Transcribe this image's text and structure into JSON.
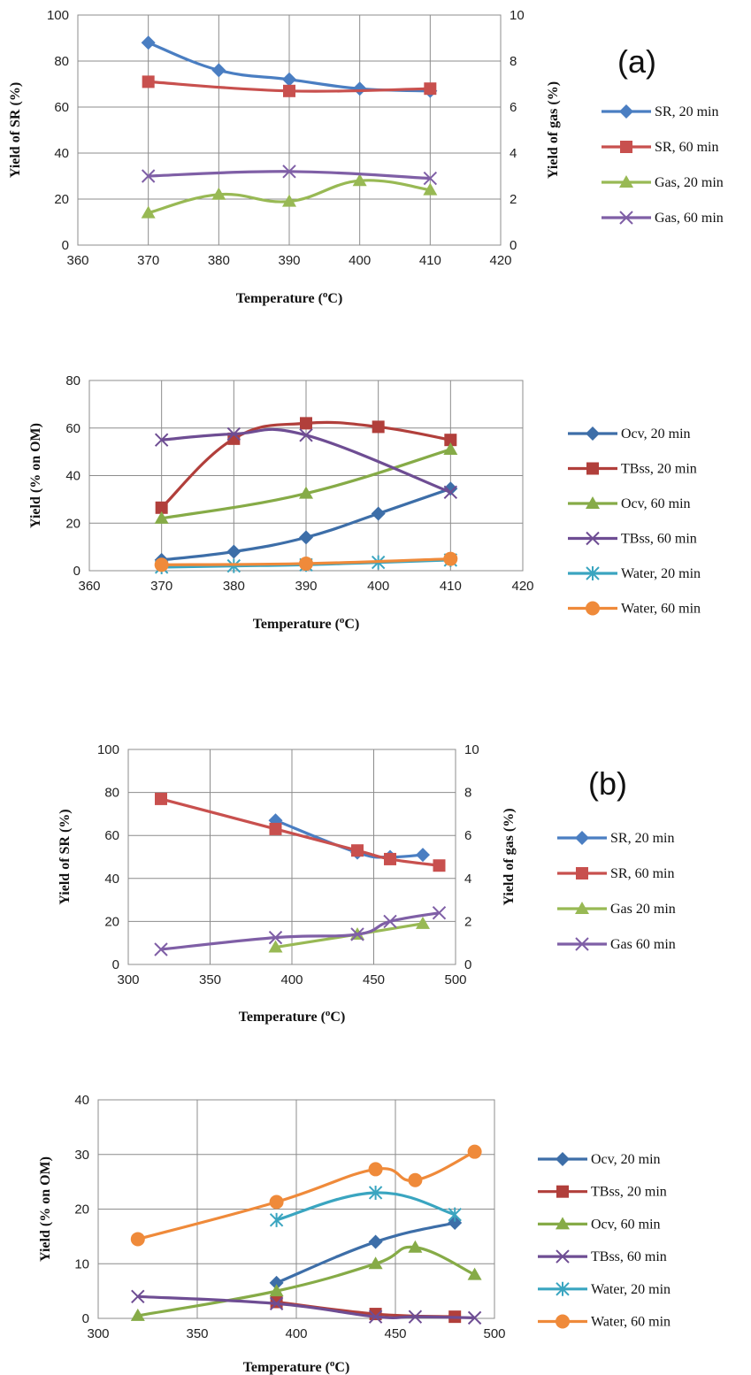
{
  "colors": {
    "sr20": "#4a7ec2",
    "sr60": "#c8504e",
    "gas20": "#98b954",
    "gas60": "#7f5fa6",
    "ocv20": "#3d6ea8",
    "tbss20": "#b13f3b",
    "ocv60": "#86ab47",
    "tbss60": "#6e4d93",
    "water20": "#3aa5c0",
    "water60": "#ef8a3a",
    "grid": "#8c8c8c"
  },
  "chart_data": [
    {
      "id": "chart1",
      "type": "line",
      "panel_label": "(a)",
      "xlabel": "Temperature (oC)",
      "ylabel": "Yield of SR (%)",
      "y2label": "Yield of gas (%)",
      "xlim": [
        360,
        420
      ],
      "xticks": [
        360,
        370,
        380,
        390,
        400,
        410,
        420
      ],
      "ylim": [
        0,
        100
      ],
      "yticks": [
        0,
        20,
        40,
        60,
        80,
        100
      ],
      "y2lim": [
        0,
        10
      ],
      "y2ticks": [
        0,
        2,
        4,
        6,
        8,
        10
      ],
      "grid": true,
      "legend_position": "right",
      "series": [
        {
          "name": "SR, 20 min",
          "axis": "left",
          "marker": "diamond",
          "color": "sr20",
          "x": [
            370,
            380,
            390,
            400,
            410
          ],
          "y": [
            88,
            76,
            72,
            68,
            67
          ]
        },
        {
          "name": "SR, 60 min",
          "axis": "left",
          "marker": "square",
          "color": "sr60",
          "x": [
            370,
            390,
            410
          ],
          "y": [
            71,
            67,
            68
          ]
        },
        {
          "name": "Gas, 20 min",
          "axis": "right",
          "marker": "triangle",
          "color": "gas20",
          "x": [
            370,
            380,
            390,
            400,
            410
          ],
          "y": [
            1.4,
            2.2,
            1.9,
            2.8,
            2.4
          ]
        },
        {
          "name": "Gas, 60 min",
          "axis": "right",
          "marker": "x",
          "color": "gas60",
          "x": [
            370,
            390,
            410
          ],
          "y": [
            3.0,
            3.2,
            2.9
          ]
        }
      ]
    },
    {
      "id": "chart2",
      "type": "line",
      "xlabel": "Temperature (oC)",
      "ylabel": "Yield (% on OM)",
      "xlim": [
        360,
        420
      ],
      "xticks": [
        360,
        370,
        380,
        390,
        400,
        410,
        420
      ],
      "ylim": [
        0,
        80
      ],
      "yticks": [
        0,
        20,
        40,
        60,
        80
      ],
      "grid": true,
      "legend_position": "right",
      "series": [
        {
          "name": "Ocv, 20 min",
          "marker": "diamond",
          "color": "ocv20",
          "x": [
            370,
            380,
            390,
            400,
            410
          ],
          "y": [
            4.5,
            8,
            14,
            24,
            34.5
          ]
        },
        {
          "name": "TBss, 20 min",
          "marker": "square",
          "color": "tbss20",
          "x": [
            370,
            380,
            390,
            400,
            410
          ],
          "y": [
            26.5,
            55.5,
            62,
            60.5,
            55
          ]
        },
        {
          "name": "Ocv, 60 min",
          "marker": "triangle",
          "color": "ocv60",
          "x": [
            370,
            390,
            410
          ],
          "y": [
            22,
            32.5,
            51
          ]
        },
        {
          "name": "TBss, 60 min",
          "marker": "x",
          "color": "tbss60",
          "x": [
            370,
            380,
            390,
            410
          ],
          "y": [
            55,
            57.5,
            57,
            33
          ]
        },
        {
          "name": "Water, 20 min",
          "marker": "star",
          "color": "water20",
          "x": [
            370,
            380,
            390,
            400,
            410
          ],
          "y": [
            1.5,
            2,
            2.5,
            3.5,
            4.5
          ]
        },
        {
          "name": "Water, 60 min",
          "marker": "circle",
          "color": "water60",
          "x": [
            370,
            390,
            410
          ],
          "y": [
            2.5,
            3,
            5
          ]
        }
      ]
    },
    {
      "id": "chart3",
      "type": "line",
      "panel_label": "(b)",
      "xlabel": "Temperature (oC)",
      "ylabel": "Yield of SR (%)",
      "y2label": "Yield of gas (%)",
      "xlim": [
        300,
        500
      ],
      "xticks": [
        300,
        350,
        400,
        450,
        500
      ],
      "ylim": [
        0,
        100
      ],
      "yticks": [
        0,
        20,
        40,
        60,
        80,
        100
      ],
      "y2lim": [
        0,
        10
      ],
      "y2ticks": [
        0,
        2,
        4,
        6,
        8,
        10
      ],
      "grid": true,
      "legend_position": "right",
      "series": [
        {
          "name": "SR, 20 min",
          "axis": "left",
          "marker": "diamond",
          "color": "sr20",
          "x": [
            390,
            440,
            460,
            480
          ],
          "y": [
            67,
            52,
            50,
            51
          ]
        },
        {
          "name": "SR, 60 min",
          "axis": "left",
          "marker": "square",
          "color": "sr60",
          "x": [
            320,
            390,
            440,
            460,
            490
          ],
          "y": [
            77,
            63,
            53,
            49,
            46
          ]
        },
        {
          "name": "Gas 20 min",
          "axis": "right",
          "marker": "triangle",
          "color": "gas20",
          "x": [
            390,
            440,
            480
          ],
          "y": [
            0.8,
            1.4,
            1.9
          ]
        },
        {
          "name": "Gas 60 min",
          "axis": "right",
          "marker": "x",
          "color": "gas60",
          "x": [
            320,
            390,
            440,
            460,
            490
          ],
          "y": [
            0.7,
            1.25,
            1.4,
            2.0,
            2.4
          ]
        }
      ]
    },
    {
      "id": "chart4",
      "type": "line",
      "xlabel": "Temperature (oC)",
      "ylabel": "Yield (% on OM)",
      "xlim": [
        300,
        500
      ],
      "xticks": [
        300,
        350,
        400,
        450,
        500
      ],
      "ylim": [
        0,
        40
      ],
      "yticks": [
        0,
        10,
        20,
        30,
        40
      ],
      "grid": true,
      "legend_position": "right",
      "series": [
        {
          "name": "Ocv, 20 min",
          "marker": "diamond",
          "color": "ocv20",
          "x": [
            390,
            440,
            480
          ],
          "y": [
            6.5,
            14,
            17.5
          ]
        },
        {
          "name": "TBss, 20 min",
          "marker": "square",
          "color": "tbss20",
          "x": [
            390,
            440,
            480
          ],
          "y": [
            3,
            0.8,
            0.3
          ]
        },
        {
          "name": "Ocv, 60 min",
          "marker": "triangle",
          "color": "ocv60",
          "x": [
            320,
            390,
            440,
            460,
            490
          ],
          "y": [
            0.5,
            5,
            10,
            13,
            8
          ]
        },
        {
          "name": "TBss, 60 min",
          "marker": "x",
          "color": "tbss60",
          "x": [
            320,
            390,
            440,
            460,
            490
          ],
          "y": [
            4,
            2.7,
            0.3,
            0.3,
            0.1
          ]
        },
        {
          "name": "Water, 20 min",
          "marker": "star",
          "color": "water20",
          "x": [
            390,
            440,
            480
          ],
          "y": [
            18,
            23,
            19
          ]
        },
        {
          "name": "Water, 60 min",
          "marker": "circle",
          "color": "water60",
          "x": [
            320,
            390,
            440,
            460,
            490
          ],
          "y": [
            14.5,
            21.3,
            27.3,
            25.3,
            30.5
          ]
        }
      ]
    }
  ]
}
